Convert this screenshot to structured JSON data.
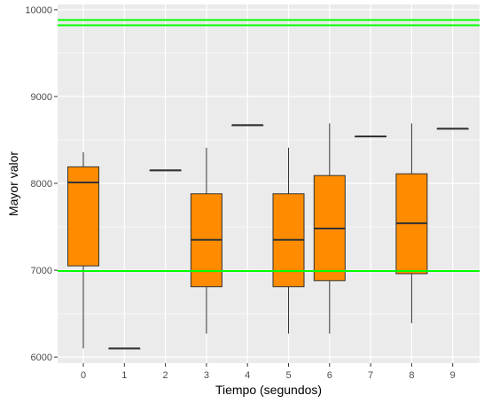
{
  "chart_data": {
    "type": "boxplot",
    "xlabel": "Tiempo (segundos)",
    "ylabel": "Mayor valor",
    "title": "",
    "categories": [
      "0",
      "1",
      "2",
      "3",
      "4",
      "5",
      "6",
      "7",
      "8",
      "9"
    ],
    "ylim": [
      5930,
      10060
    ],
    "yticks": [
      6000,
      7000,
      8000,
      9000,
      10000
    ],
    "grid": true,
    "boxes": [
      {
        "x": 0,
        "min": 6100,
        "q1": 7050,
        "median": 8010,
        "q3": 8190,
        "max": 8360
      },
      {
        "x": 1,
        "min": 6100,
        "q1": 6100,
        "median": 6100,
        "q3": 6100,
        "max": 6100
      },
      {
        "x": 2,
        "min": 8150,
        "q1": 8150,
        "median": 8150,
        "q3": 8150,
        "max": 8150
      },
      {
        "x": 3,
        "min": 6270,
        "q1": 6810,
        "median": 7350,
        "q3": 7880,
        "max": 8410
      },
      {
        "x": 4,
        "min": 8670,
        "q1": 8670,
        "median": 8670,
        "q3": 8670,
        "max": 8670
      },
      {
        "x": 5,
        "min": 6270,
        "q1": 6810,
        "median": 7350,
        "q3": 7880,
        "max": 8410
      },
      {
        "x": 6,
        "min": 6270,
        "q1": 6880,
        "median": 7480,
        "q3": 8090,
        "max": 8690
      },
      {
        "x": 7,
        "min": 8540,
        "q1": 8540,
        "median": 8540,
        "q3": 8540,
        "max": 8540
      },
      {
        "x": 8,
        "min": 6390,
        "q1": 6960,
        "median": 7540,
        "q3": 8110,
        "max": 8690
      },
      {
        "x": 9,
        "min": 8630,
        "q1": 8630,
        "median": 8630,
        "q3": 8630,
        "max": 8630
      }
    ],
    "hlines": [
      9880,
      9820,
      6990
    ],
    "colors": {
      "box_fill": "#ff8c00",
      "box_stroke": "#333333",
      "hline": "#00ff00",
      "panel": "#ebebeb",
      "grid": "#ffffff"
    }
  }
}
